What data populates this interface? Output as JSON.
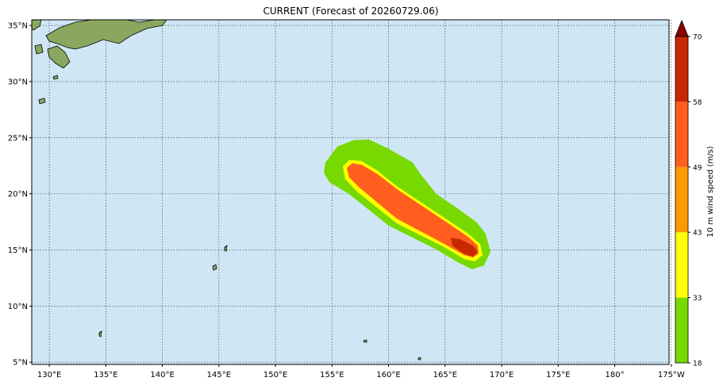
{
  "title": "CURRENT (Forecast of 20260729.06)",
  "map": {
    "lonlim": [
      128.45,
      184.8
    ],
    "latlim": [
      4.8,
      35.5
    ],
    "lonticks": [
      {
        "value": 130,
        "label": "130°E"
      },
      {
        "value": 135,
        "label": "135°E"
      },
      {
        "value": 140,
        "label": "140°E"
      },
      {
        "value": 145,
        "label": "145°E"
      },
      {
        "value": 150,
        "label": "150°E"
      },
      {
        "value": 155,
        "label": "155°E"
      },
      {
        "value": 160,
        "label": "160°E"
      },
      {
        "value": 165,
        "label": "165°E"
      },
      {
        "value": 170,
        "label": "170°E"
      },
      {
        "value": 175,
        "label": "175°E"
      },
      {
        "value": 180,
        "label": "180°"
      },
      {
        "value": 185,
        "label": "175°W"
      }
    ],
    "latticks": [
      {
        "value": 5,
        "label": "5°N"
      },
      {
        "value": 10,
        "label": "10°N"
      },
      {
        "value": 15,
        "label": "15°N"
      },
      {
        "value": 20,
        "label": "20°N"
      },
      {
        "value": 25,
        "label": "25°N"
      },
      {
        "value": 30,
        "label": "30°N"
      },
      {
        "value": 35,
        "label": "35°N"
      }
    ],
    "grid": true
  },
  "colorbar": {
    "label": "10 m wind speed (m/s)",
    "ticks": [
      18,
      33,
      43,
      49,
      58,
      70
    ],
    "colors": [
      "#77d900",
      "#ffff00",
      "#ff9900",
      "#ff5e1f",
      "#c82800"
    ],
    "extend_color": "#8b0000"
  }
}
